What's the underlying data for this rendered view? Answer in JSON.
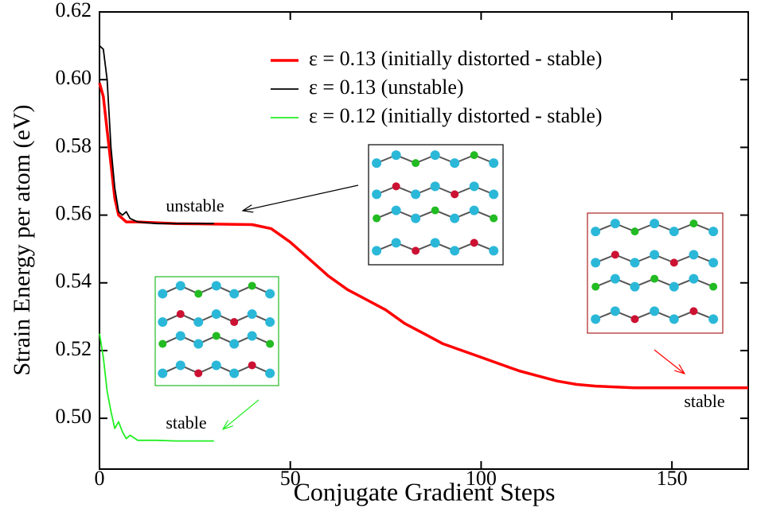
{
  "chart_data": {
    "type": "line",
    "xlabel": "Conjugate Gradient Steps",
    "ylabel": "Strain Energy per atom (eV)",
    "xlim": [
      0,
      170
    ],
    "ylim": [
      0.485,
      0.62
    ],
    "xticks": [
      0,
      50,
      100,
      150
    ],
    "yticks": [
      {
        "value": 0.5,
        "label": "0.50"
      },
      0.52,
      0.54,
      0.56,
      0.58,
      {
        "value": 0.6,
        "label": "0.60"
      },
      0.62
    ],
    "legend": "upper right",
    "series": [
      {
        "name": "ε = 0.13 (initially distorted - stable)",
        "color": "#ff0000",
        "x": [
          0,
          1,
          2,
          3,
          4,
          5,
          6,
          7,
          10,
          20,
          40,
          45,
          50,
          55,
          60,
          65,
          70,
          75,
          80,
          85,
          90,
          95,
          100,
          105,
          110,
          115,
          120,
          125,
          130,
          140,
          150,
          170
        ],
        "values": [
          0.599,
          0.595,
          0.585,
          0.575,
          0.565,
          0.56,
          0.559,
          0.558,
          0.558,
          0.5575,
          0.5572,
          0.556,
          0.552,
          0.547,
          0.542,
          0.538,
          0.535,
          0.532,
          0.528,
          0.525,
          0.522,
          0.52,
          0.518,
          0.516,
          0.514,
          0.5125,
          0.511,
          0.51,
          0.5095,
          0.509,
          0.509,
          0.509
        ]
      },
      {
        "name": "ε = 0.13 (unstable)",
        "color": "#000000",
        "x": [
          0,
          1,
          2,
          3,
          4,
          5,
          6,
          7,
          8,
          10,
          15,
          20,
          30
        ],
        "values": [
          0.61,
          0.609,
          0.6,
          0.58,
          0.568,
          0.561,
          0.56,
          0.561,
          0.559,
          0.558,
          0.5575,
          0.5575,
          0.5575
        ]
      },
      {
        "name": "ε = 0.12 (initially distorted - stable)",
        "color": "#22ee22",
        "x": [
          0,
          1,
          2,
          3,
          4,
          5,
          6,
          7,
          8,
          10,
          15,
          20,
          30
        ],
        "values": [
          0.525,
          0.518,
          0.508,
          0.502,
          0.497,
          0.499,
          0.496,
          0.494,
          0.495,
          0.4935,
          0.4935,
          0.4933,
          0.4933
        ]
      }
    ],
    "annotations": [
      {
        "text": "unstable",
        "color": "#000000"
      },
      {
        "text": "stable",
        "color": "#22ee22"
      },
      {
        "text": "stable",
        "color": "#ff0000"
      }
    ]
  }
}
